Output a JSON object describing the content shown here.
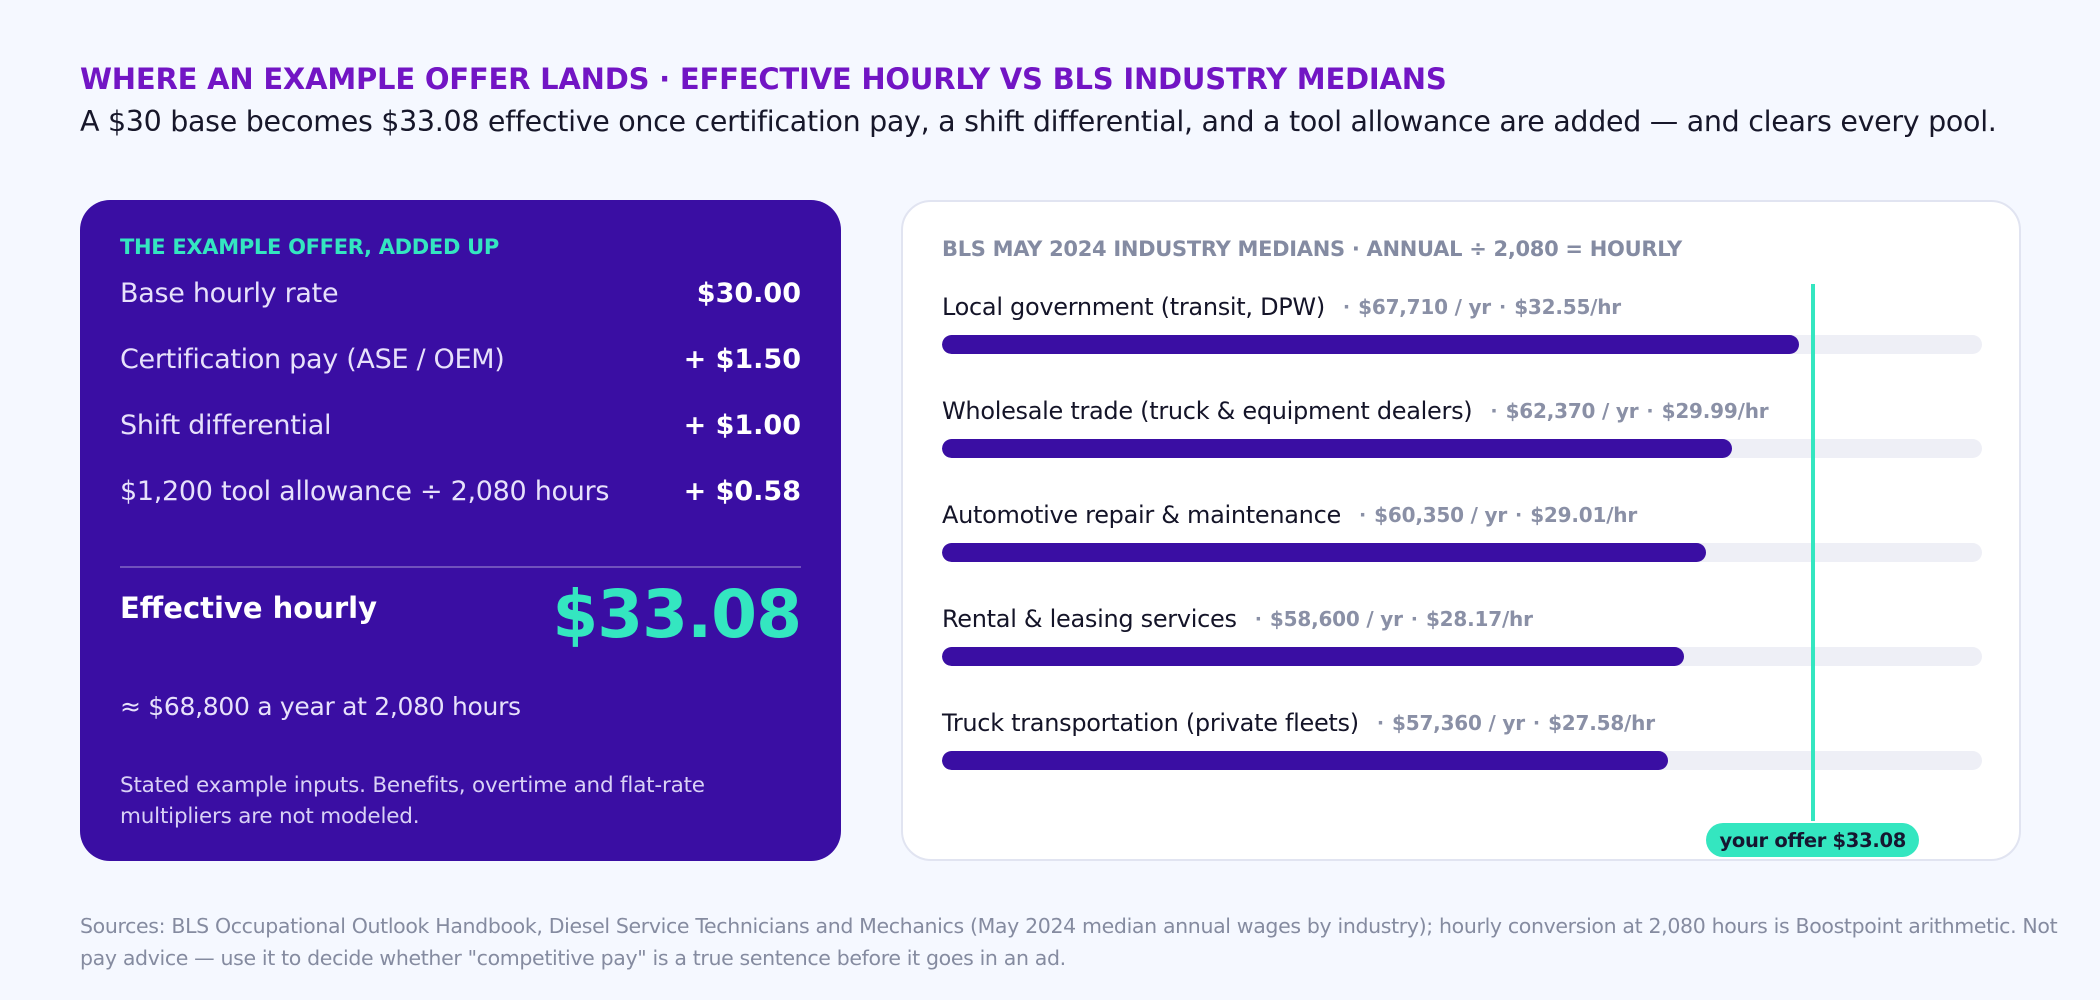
{
  "header": {
    "kicker": "WHERE AN EXAMPLE OFFER LANDS · EFFECTIVE HOURLY VS BLS INDUSTRY MEDIANS",
    "subtitle": "A $30 base becomes $33.08 effective once certification pay, a shift differential, and a tool allowance are added — and clears every pool."
  },
  "offer": {
    "heading": "THE EXAMPLE OFFER, ADDED UP",
    "lines": [
      {
        "label": "Base hourly rate",
        "amount": "$30.00"
      },
      {
        "label": "Certification pay (ASE / OEM)",
        "amount": "+ $1.50"
      },
      {
        "label": "Shift differential",
        "amount": "+ $1.00"
      },
      {
        "label": "$1,200 tool allowance ÷ 2,080 hours",
        "amount": "+ $0.58"
      }
    ],
    "effective_label": "Effective hourly",
    "effective_value": "$33.08",
    "annual_note": "≈ $68,800 a year at 2,080 hours",
    "caveat": "Stated example inputs. Benefits, overtime and flat-rate multipliers are not modeled."
  },
  "chart_data": {
    "type": "bar",
    "orientation": "horizontal",
    "title": "BLS MAY 2024 INDUSTRY MEDIANS · ANNUAL ÷ 2,080 = HOURLY",
    "xlim": [
      0,
      39.5
    ],
    "grid": false,
    "categories": [
      "Local government (transit, DPW)",
      "Wholesale trade (truck & equipment dealers)",
      "Automotive repair & maintenance",
      "Rental & leasing services",
      "Truck transportation (private fleets)"
    ],
    "annual_labels": [
      "$67,710 / yr",
      "$62,370 / yr",
      "$60,350 / yr",
      "$58,600 / yr",
      "$57,360 / yr"
    ],
    "hourly_labels": [
      "$32.55/hr",
      "$29.99/hr",
      "$29.01/hr",
      "$28.17/hr",
      "$27.58/hr"
    ],
    "values": [
      32.55,
      29.99,
      29.01,
      28.17,
      27.58
    ],
    "reference_line": {
      "value": 33.08,
      "label": "your offer $33.08"
    },
    "colors": {
      "bar": "#3a0ea3",
      "track": "#eeeff6",
      "reference": "#34e6c0"
    }
  },
  "sources": "Sources: BLS Occupational Outlook Handbook, Diesel Service Technicians and Mechanics (May 2024 median annual wages by industry); hourly conversion at 2,080 hours is Boostpoint arithmetic. Not pay advice — use it to decide whether \"competitive pay\" is a true sentence before it goes in an ad."
}
